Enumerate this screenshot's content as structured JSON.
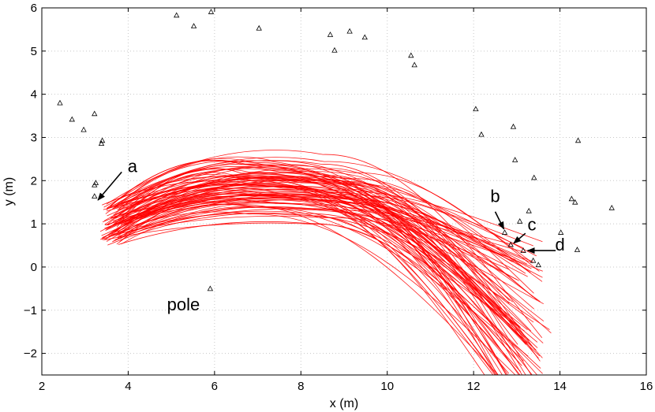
{
  "chart_data": {
    "type": "scatter+line",
    "xlabel": "x (m)",
    "ylabel": "y (m)",
    "xlim": [
      2,
      16
    ],
    "ylim": [
      -2.5,
      6
    ],
    "xticks": [
      2,
      4,
      6,
      8,
      10,
      12,
      14,
      16
    ],
    "yticks": [
      -2,
      -1,
      0,
      1,
      2,
      3,
      4,
      5,
      6
    ],
    "grid": true,
    "landmark_marker": "triangle",
    "landmark_color": "#000000",
    "trajectory_color": "#ff0000",
    "landmarks": [
      [
        2.42,
        3.8
      ],
      [
        2.7,
        3.42
      ],
      [
        2.97,
        3.18
      ],
      [
        3.22,
        3.55
      ],
      [
        3.4,
        2.93
      ],
      [
        3.38,
        2.86
      ],
      [
        3.25,
        1.95
      ],
      [
        3.22,
        1.9
      ],
      [
        3.22,
        1.64
      ],
      [
        5.12,
        5.83
      ],
      [
        5.52,
        5.58
      ],
      [
        5.92,
        5.91
      ],
      [
        7.03,
        5.53
      ],
      [
        8.68,
        5.38
      ],
      [
        8.78,
        5.02
      ],
      [
        9.13,
        5.46
      ],
      [
        9.48,
        5.32
      ],
      [
        10.55,
        4.9
      ],
      [
        10.63,
        4.68
      ],
      [
        12.05,
        3.66
      ],
      [
        12.18,
        3.07
      ],
      [
        12.92,
        3.25
      ],
      [
        12.96,
        2.48
      ],
      [
        13.4,
        2.07
      ],
      [
        14.42,
        2.93
      ],
      [
        12.72,
        0.8
      ],
      [
        12.86,
        0.52
      ],
      [
        13.07,
        1.06
      ],
      [
        13.15,
        0.38
      ],
      [
        13.28,
        1.3
      ],
      [
        13.38,
        0.15
      ],
      [
        13.5,
        0.05
      ],
      [
        14.02,
        0.8
      ],
      [
        14.27,
        1.58
      ],
      [
        14.35,
        1.5
      ],
      [
        14.4,
        0.4
      ],
      [
        15.2,
        1.37
      ],
      [
        5.9,
        -0.5
      ]
    ],
    "trajectory_bundle": {
      "count": 90,
      "start_x_range": [
        3.35,
        3.85
      ],
      "start_y_range": [
        0.5,
        1.5
      ],
      "peak_x_range": [
        6.5,
        9.3
      ],
      "peak_y_range": [
        0.85,
        2.57
      ],
      "end_region": "lower-right, x 11.8 to 13.5, y -2.5 to 0.8"
    },
    "annotations": [
      {
        "label": "a",
        "text_xy": [
          4.1,
          2.2
        ],
        "arrow_from": [
          3.85,
          2.2
        ],
        "arrow_to": [
          3.3,
          1.55
        ]
      },
      {
        "label": "b",
        "text_xy": [
          12.5,
          1.5
        ],
        "arrow_from": [
          12.5,
          1.28
        ],
        "arrow_to": [
          12.7,
          0.88
        ]
      },
      {
        "label": "c",
        "text_xy": [
          13.35,
          0.85
        ],
        "arrow_from": [
          13.2,
          0.78
        ],
        "arrow_to": [
          12.93,
          0.55
        ]
      },
      {
        "label": "d",
        "text_xy": [
          14.0,
          0.38
        ],
        "arrow_from": [
          13.9,
          0.38
        ],
        "arrow_to": [
          13.25,
          0.38
        ]
      },
      {
        "label": "pole",
        "text_xy": [
          5.28,
          -1.0
        ]
      }
    ]
  }
}
